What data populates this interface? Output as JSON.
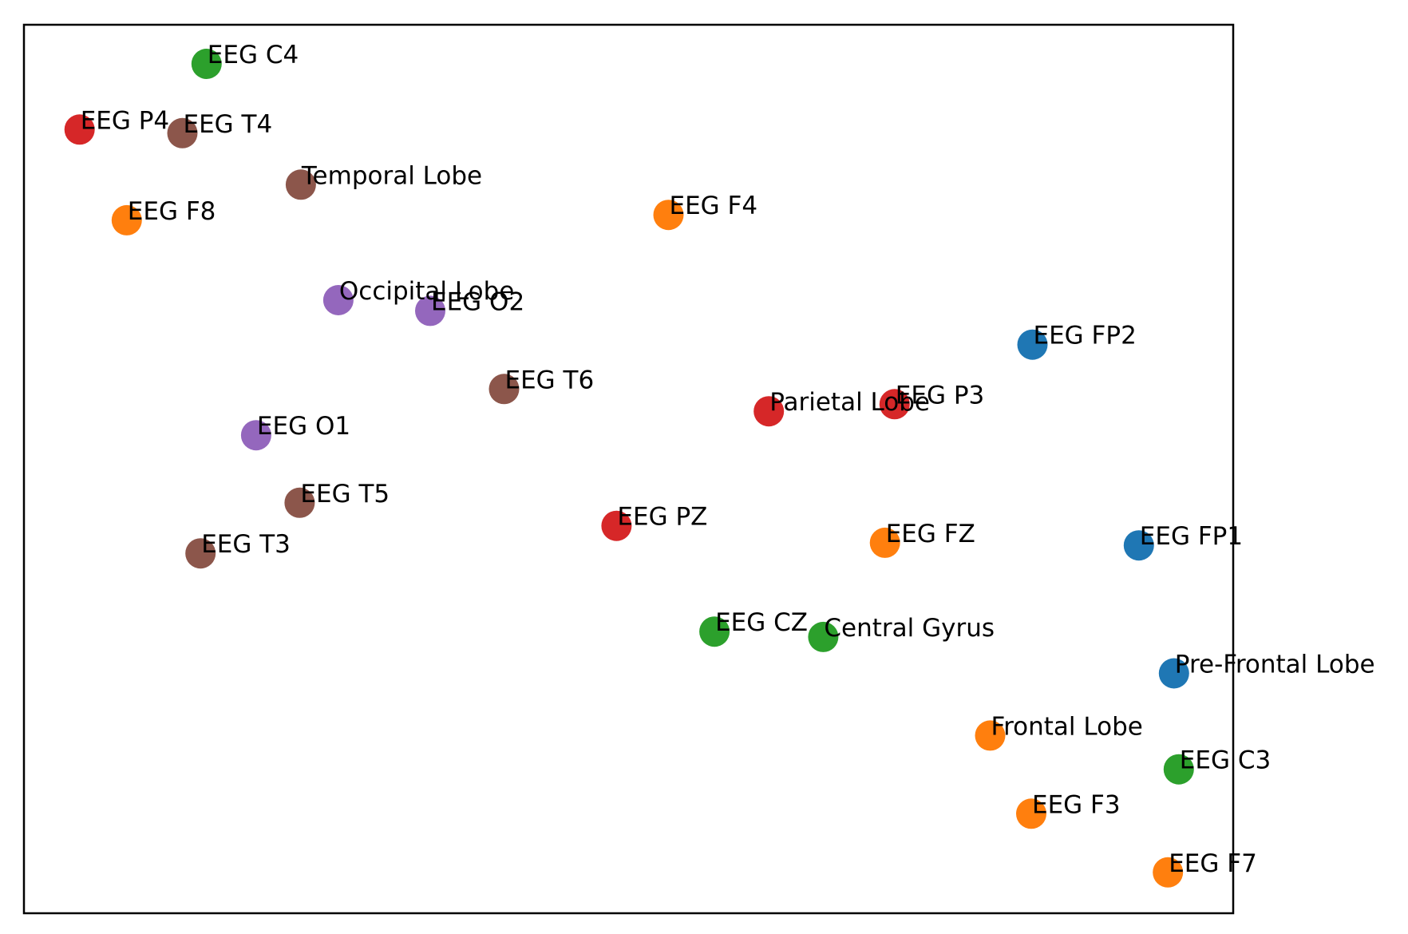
{
  "chart_data": {
    "type": "scatter",
    "title": "",
    "xlabel": "",
    "ylabel": "",
    "xlim": [
      0,
      100
    ],
    "ylim": [
      0,
      100
    ],
    "axes_ticks": false,
    "grid": false,
    "legend": "none",
    "categories": [
      {
        "group": "prefrontal",
        "color": "#1f77b4"
      },
      {
        "group": "frontal",
        "color": "#ff7f0e"
      },
      {
        "group": "central",
        "color": "#2ca02c"
      },
      {
        "group": "parietal",
        "color": "#d62728"
      },
      {
        "group": "occipital",
        "color": "#9467bd"
      },
      {
        "group": "temporal",
        "color": "#8c564b"
      }
    ],
    "points": [
      {
        "label": "EEG C4",
        "x": 15.1,
        "y": 95.6,
        "group": "central",
        "color": "#2ca02c"
      },
      {
        "label": "EEG P4",
        "x": 4.6,
        "y": 88.2,
        "group": "parietal",
        "color": "#d62728"
      },
      {
        "label": "EEG T4",
        "x": 13.1,
        "y": 87.8,
        "group": "temporal",
        "color": "#8c564b"
      },
      {
        "label": "Temporal Lobe",
        "x": 22.9,
        "y": 82.0,
        "group": "temporal",
        "color": "#8c564b"
      },
      {
        "label": "EEG F8",
        "x": 8.5,
        "y": 78.0,
        "group": "frontal",
        "color": "#ff7f0e"
      },
      {
        "label": "EEG F4",
        "x": 53.3,
        "y": 78.6,
        "group": "frontal",
        "color": "#ff7f0e"
      },
      {
        "label": "Occipital Lobe",
        "x": 26.0,
        "y": 69.0,
        "group": "occipital",
        "color": "#9467bd"
      },
      {
        "label": "EEG O2",
        "x": 33.6,
        "y": 67.8,
        "group": "occipital",
        "color": "#9467bd"
      },
      {
        "label": "EEG FP2",
        "x": 83.4,
        "y": 64.0,
        "group": "prefrontal",
        "color": "#1f77b4"
      },
      {
        "label": "EEG T6",
        "x": 39.7,
        "y": 59.0,
        "group": "temporal",
        "color": "#8c564b"
      },
      {
        "label": "Parietal Lobe",
        "x": 61.6,
        "y": 56.5,
        "group": "parietal",
        "color": "#d62728"
      },
      {
        "label": "EEG P3",
        "x": 72.0,
        "y": 57.3,
        "group": "parietal",
        "color": "#d62728"
      },
      {
        "label": "EEG O1",
        "x": 19.2,
        "y": 53.8,
        "group": "occipital",
        "color": "#9467bd"
      },
      {
        "label": "EEG T5",
        "x": 22.8,
        "y": 46.2,
        "group": "temporal",
        "color": "#8c564b"
      },
      {
        "label": "EEG PZ",
        "x": 49.0,
        "y": 43.6,
        "group": "parietal",
        "color": "#d62728"
      },
      {
        "label": "EEG T3",
        "x": 14.6,
        "y": 40.5,
        "group": "temporal",
        "color": "#8c564b"
      },
      {
        "label": "EEG FZ",
        "x": 71.2,
        "y": 41.7,
        "group": "frontal",
        "color": "#ff7f0e"
      },
      {
        "label": "EEG FP1",
        "x": 92.2,
        "y": 41.4,
        "group": "prefrontal",
        "color": "#1f77b4"
      },
      {
        "label": "EEG CZ",
        "x": 57.1,
        "y": 31.7,
        "group": "central",
        "color": "#2ca02c"
      },
      {
        "label": "Central Gyrus",
        "x": 66.1,
        "y": 31.1,
        "group": "central",
        "color": "#2ca02c"
      },
      {
        "label": "Pre-Frontal Lobe",
        "x": 95.1,
        "y": 27.0,
        "group": "prefrontal",
        "color": "#1f77b4"
      },
      {
        "label": "Frontal Lobe",
        "x": 79.9,
        "y": 20.0,
        "group": "frontal",
        "color": "#ff7f0e"
      },
      {
        "label": "EEG C3",
        "x": 95.5,
        "y": 16.2,
        "group": "central",
        "color": "#2ca02c"
      },
      {
        "label": "EEG F3",
        "x": 83.3,
        "y": 11.2,
        "group": "frontal",
        "color": "#ff7f0e"
      },
      {
        "label": "EEG F7",
        "x": 94.6,
        "y": 4.6,
        "group": "frontal",
        "color": "#ff7f0e"
      }
    ]
  }
}
